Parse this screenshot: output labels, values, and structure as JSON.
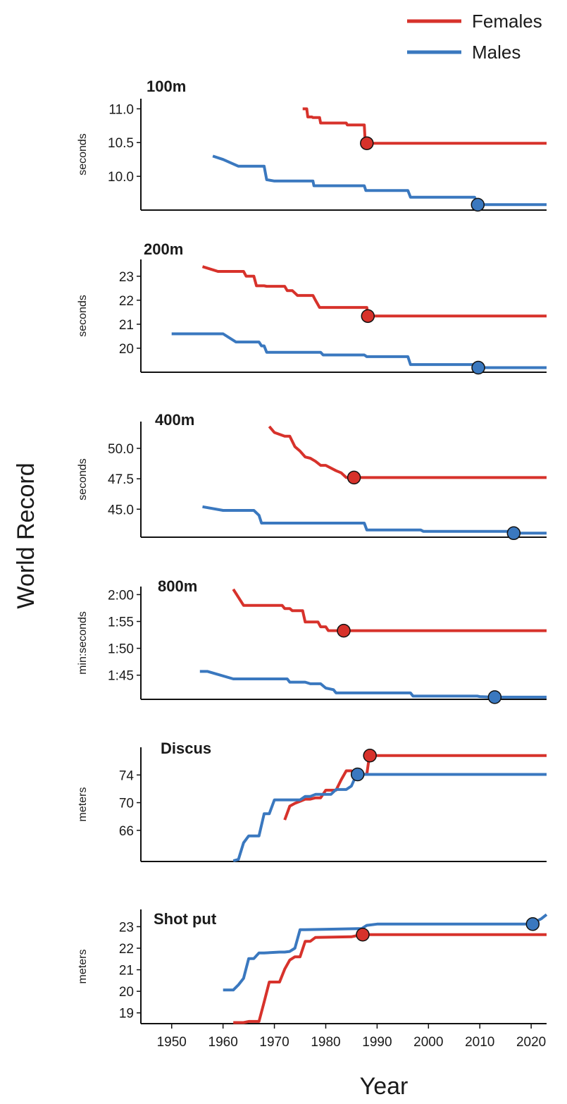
{
  "figure": {
    "ylabel": "World Record",
    "xlabel": "Year",
    "legend": {
      "placement": "top-right",
      "entries": [
        {
          "label": "Females",
          "color": "#d7322b"
        },
        {
          "label": "Males",
          "color": "#3a78bf"
        }
      ]
    },
    "x_ticks": [
      "1950",
      "1960",
      "1970",
      "1980",
      "1990",
      "2000",
      "2010",
      "2020"
    ]
  },
  "chart_data": [
    {
      "type": "line",
      "title": "100m",
      "ylabel": "seconds",
      "xlim": [
        1944,
        2023
      ],
      "ylim": [
        9.5,
        11.15
      ],
      "yticks": [
        10.0,
        10.5,
        11.0
      ],
      "ytick_labels": [
        "10.0",
        "10.5",
        "11.0"
      ],
      "series": [
        {
          "name": "Females",
          "color": "#d7322b",
          "x": [
            1975.5,
            1976.3,
            1976.5,
            1977.3,
            1977.5,
            1978.8,
            1979,
            1980.8,
            1981,
            1984,
            1984.2,
            1987.5,
            1987.7,
            2023
          ],
          "y": [
            11.0,
            11.0,
            10.88,
            10.88,
            10.87,
            10.87,
            10.79,
            10.79,
            10.79,
            10.79,
            10.76,
            10.76,
            10.49,
            10.49
          ],
          "record": {
            "x": 1988,
            "y": 10.49
          }
        },
        {
          "name": "Males",
          "color": "#3a78bf",
          "x": [
            1958,
            1960,
            1963,
            1968,
            1968.5,
            1970,
            1977.5,
            1977.7,
            1987.5,
            1987.8,
            1996,
            1996.5,
            2009,
            2009.5,
            2023
          ],
          "y": [
            10.3,
            10.25,
            10.15,
            10.15,
            9.95,
            9.93,
            9.93,
            9.86,
            9.86,
            9.79,
            9.79,
            9.69,
            9.69,
            9.58,
            9.58
          ],
          "record": {
            "x": 2009.6,
            "y": 9.58
          }
        }
      ]
    },
    {
      "type": "line",
      "title": "200m",
      "ylabel": "seconds",
      "xlim": [
        1944,
        2023
      ],
      "ylim": [
        19.0,
        23.7
      ],
      "yticks": [
        20,
        21,
        22,
        23
      ],
      "ytick_labels": [
        "20",
        "21",
        "22",
        "23"
      ],
      "series": [
        {
          "name": "Females",
          "color": "#d7322b",
          "x": [
            1956,
            1959,
            1960,
            1964,
            1964.5,
            1966,
            1966.5,
            1968,
            1968.5,
            1972,
            1972.5,
            1973.5,
            1974,
            1974.5,
            1975,
            1977.5,
            1978,
            1978.8,
            1979,
            1988,
            1988.2,
            2023
          ],
          "y": [
            23.4,
            23.2,
            23.2,
            23.2,
            23.0,
            23.0,
            22.6,
            22.6,
            22.58,
            22.58,
            22.4,
            22.4,
            22.3,
            22.2,
            22.2,
            22.2,
            22.0,
            21.7,
            21.7,
            21.7,
            21.34,
            21.34
          ],
          "record": {
            "x": 1988.2,
            "y": 21.34
          }
        },
        {
          "name": "Males",
          "color": "#3a78bf",
          "x": [
            1950,
            1960,
            1962.5,
            1967,
            1967.5,
            1968,
            1968.5,
            1979,
            1979.5,
            1987.5,
            1988,
            1996,
            1996.5,
            2009,
            2009.5,
            2023
          ],
          "y": [
            20.6,
            20.6,
            20.26,
            20.26,
            20.1,
            20.1,
            19.83,
            19.83,
            19.72,
            19.72,
            19.65,
            19.65,
            19.32,
            19.32,
            19.19,
            19.19
          ],
          "record": {
            "x": 2009.7,
            "y": 19.19
          }
        }
      ]
    },
    {
      "type": "line",
      "title": "400m",
      "ylabel": "seconds",
      "xlim": [
        1944,
        2023
      ],
      "ylim": [
        42.7,
        52.2
      ],
      "yticks": [
        45.0,
        47.5,
        50.0
      ],
      "ytick_labels": [
        "45.0",
        "47.5",
        "50.0"
      ],
      "series": [
        {
          "name": "Females",
          "color": "#d7322b",
          "x": [
            1969,
            1970,
            1972,
            1973,
            1974,
            1975,
            1976,
            1977,
            1978,
            1979,
            1980,
            1982,
            1983,
            1984,
            1985.5,
            2023
          ],
          "y": [
            51.8,
            51.3,
            51.0,
            51.0,
            50.14,
            49.77,
            49.29,
            49.19,
            48.94,
            48.6,
            48.6,
            48.16,
            47.99,
            47.6,
            47.6,
            47.6
          ],
          "record": {
            "x": 1985.5,
            "y": 47.6
          }
        },
        {
          "name": "Males",
          "color": "#3a78bf",
          "x": [
            1956,
            1960,
            1966,
            1967,
            1967.5,
            1968,
            1987.5,
            1988,
            1998.5,
            1999,
            2016,
            2016.5,
            2023
          ],
          "y": [
            45.2,
            44.9,
            44.9,
            44.5,
            43.86,
            43.86,
            43.86,
            43.29,
            43.29,
            43.18,
            43.18,
            43.03,
            43.03
          ],
          "record": {
            "x": 2016.6,
            "y": 43.03
          }
        }
      ]
    },
    {
      "type": "line",
      "title": "800m",
      "ylabel": "min:seconds",
      "xlim": [
        1944,
        2023
      ],
      "ylim": [
        100.5,
        121.5
      ],
      "yticks": [
        105,
        110,
        115,
        120
      ],
      "ytick_labels": [
        "1:45",
        "1:50",
        "1:55",
        "2:00"
      ],
      "series": [
        {
          "name": "Females",
          "color": "#d7322b",
          "x": [
            1962,
            1964,
            1964.5,
            1971.5,
            1972,
            1973,
            1973.5,
            1975.5,
            1976,
            1978.5,
            1979,
            1980,
            1980.5,
            1983.3,
            2023
          ],
          "y": [
            121.0,
            118.0,
            118.0,
            118.0,
            117.4,
            117.4,
            117.0,
            117.0,
            114.9,
            114.9,
            114.0,
            114.0,
            113.3,
            113.28,
            113.28
          ],
          "record": {
            "x": 1983.5,
            "y": 113.28
          }
        },
        {
          "name": "Males",
          "color": "#3a78bf",
          "x": [
            1955.5,
            1957,
            1962,
            1962.5,
            1972.5,
            1973,
            1976,
            1977,
            1979,
            1980,
            1981.5,
            1982,
            1996.5,
            1997,
            2009.5,
            2010,
            2012.5,
            2023
          ],
          "y": [
            105.7,
            105.7,
            104.3,
            104.3,
            104.3,
            103.7,
            103.7,
            103.4,
            103.4,
            102.6,
            102.3,
            101.7,
            101.7,
            101.11,
            101.11,
            101.01,
            100.91,
            100.91
          ],
          "record": {
            "x": 2012.9,
            "y": 100.91
          }
        }
      ]
    },
    {
      "type": "line",
      "title": "Discus",
      "ylabel": "meters",
      "xlim": [
        1944,
        2023
      ],
      "ylim": [
        61.5,
        78.0
      ],
      "yticks": [
        66,
        70,
        74
      ],
      "ytick_labels": [
        "66",
        "70",
        "74"
      ],
      "series": [
        {
          "name": "Females",
          "color": "#d7322b",
          "x": [
            1972,
            1973,
            1974,
            1975,
            1976,
            1977,
            1978,
            1979,
            1980,
            1982,
            1983,
            1984,
            1985,
            1986,
            1988,
            1988.5,
            2023
          ],
          "y": [
            67.5,
            69.5,
            69.9,
            70.2,
            70.5,
            70.5,
            70.7,
            70.7,
            71.8,
            71.8,
            73.3,
            74.6,
            74.6,
            74.1,
            74.1,
            76.8,
            76.8
          ],
          "record": {
            "x": 1988.6,
            "y": 76.8
          }
        },
        {
          "name": "Males",
          "color": "#3a78bf",
          "x": [
            1962,
            1963,
            1964,
            1965,
            1966,
            1967,
            1968,
            1969,
            1970,
            1971,
            1972,
            1975,
            1976,
            1977,
            1978,
            1981,
            1982,
            1983,
            1984,
            1985,
            1986,
            2023
          ],
          "y": [
            61.6,
            61.8,
            64.2,
            65.2,
            65.2,
            65.2,
            68.4,
            68.4,
            70.4,
            70.4,
            70.4,
            70.4,
            70.9,
            70.9,
            71.2,
            71.2,
            71.9,
            71.9,
            71.9,
            72.4,
            74.08,
            74.08
          ],
          "record": {
            "x": 1986.2,
            "y": 74.08
          }
        }
      ]
    },
    {
      "type": "line",
      "title": "Shot put",
      "ylabel": "meters",
      "xlim": [
        1944,
        2023
      ],
      "ylim": [
        18.5,
        23.8
      ],
      "yticks": [
        19,
        20,
        21,
        22,
        23
      ],
      "ytick_labels": [
        "19",
        "20",
        "21",
        "22",
        "23"
      ],
      "series": [
        {
          "name": "Females",
          "color": "#d7322b",
          "x": [
            1962,
            1963,
            1964,
            1965,
            1967,
            1968,
            1969,
            1970,
            1971,
            1972,
            1973,
            1974,
            1975,
            1976,
            1977,
            1978,
            1985,
            1987,
            2023
          ],
          "y": [
            18.55,
            18.55,
            18.55,
            18.6,
            18.6,
            19.5,
            20.43,
            20.43,
            20.43,
            21.03,
            21.45,
            21.6,
            21.6,
            22.32,
            22.32,
            22.5,
            22.53,
            22.63,
            22.63
          ],
          "record": {
            "x": 1987.2,
            "y": 22.63
          }
        },
        {
          "name": "Males",
          "color": "#3a78bf",
          "x": [
            1960,
            1962,
            1963,
            1964,
            1965,
            1966,
            1967,
            1968,
            1971,
            1972,
            1973,
            1974,
            1975,
            1976,
            1987,
            1988,
            1990,
            2020,
            2022,
            2023
          ],
          "y": [
            20.06,
            20.06,
            20.3,
            20.6,
            21.52,
            21.52,
            21.78,
            21.78,
            21.82,
            21.82,
            21.85,
            22.0,
            22.86,
            22.86,
            22.91,
            23.06,
            23.12,
            23.12,
            23.37,
            23.56
          ],
          "record": {
            "x": 2020.3,
            "y": 23.12
          }
        }
      ]
    }
  ]
}
